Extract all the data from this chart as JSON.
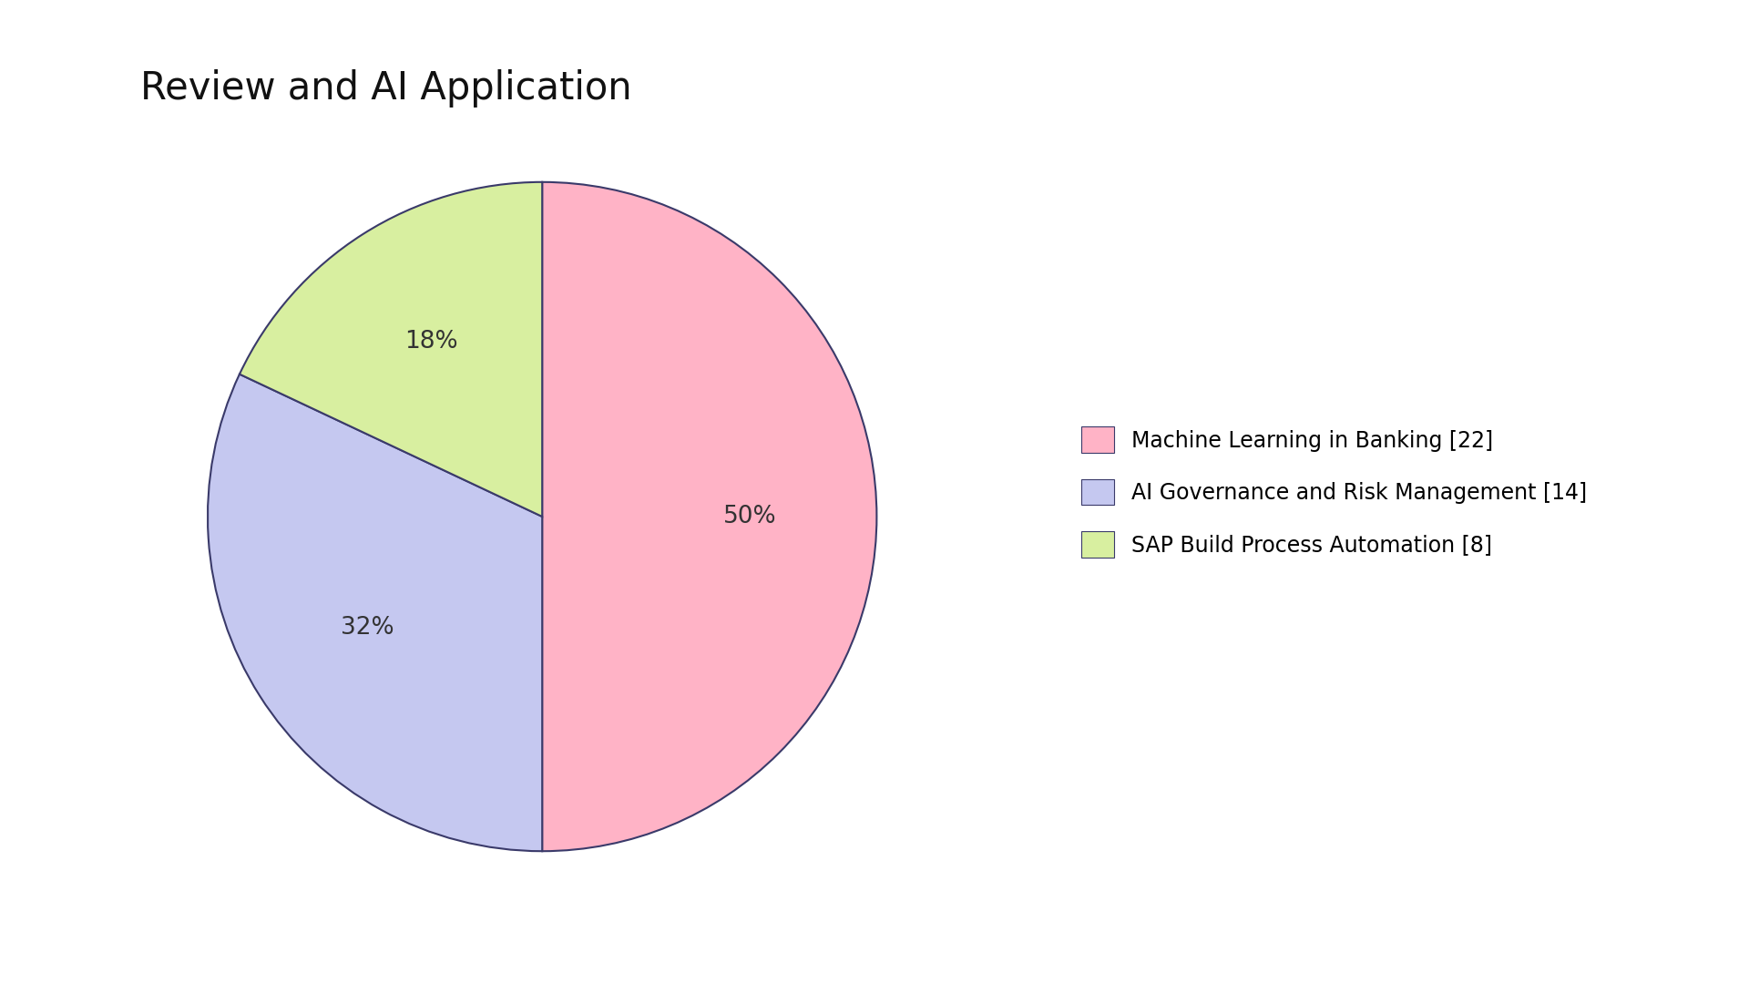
{
  "title": "Review and AI Application",
  "slices": [
    {
      "label": "Machine Learning in Banking [22]",
      "value": 50,
      "color": "#FFB3C6"
    },
    {
      "label": "AI Governance and Risk Management [14]",
      "value": 32,
      "color": "#C5C8F0"
    },
    {
      "label": "SAP Build Process Automation [8]",
      "value": 18,
      "color": "#D8EFA0"
    }
  ],
  "autopct_labels": [
    "50%",
    "32%",
    "18%"
  ],
  "startangle": 90,
  "background_color": "#FFFFFF",
  "title_fontsize": 30,
  "label_fontsize": 19,
  "legend_fontsize": 17,
  "edge_color": "#3a3a6a"
}
